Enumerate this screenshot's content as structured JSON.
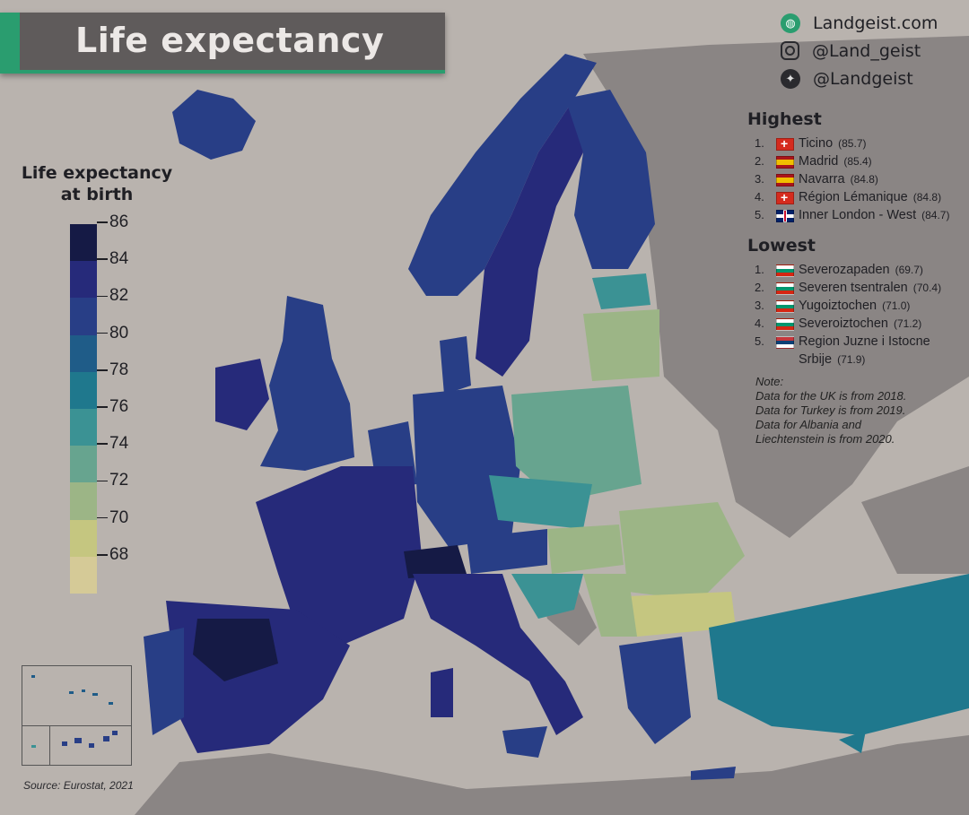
{
  "title": "Life expectancy",
  "social": [
    {
      "icon": "globe-icon",
      "label": "Landgeist.com"
    },
    {
      "icon": "instagram-icon",
      "label": "@Land_geist"
    },
    {
      "icon": "twitter-icon",
      "label": "@Landgeist"
    }
  ],
  "legend": {
    "title_line1": "Life expectancy",
    "title_line2": "at birth",
    "ticks": [
      "86",
      "84",
      "82",
      "80",
      "78",
      "76",
      "74",
      "72",
      "70",
      "68"
    ],
    "colors": [
      "#151a45",
      "#262a7a",
      "#283e86",
      "#1f5c88",
      "#1f788d",
      "#3b9294",
      "#67a48f",
      "#9cb586",
      "#c5c680",
      "#d5ca97"
    ]
  },
  "highest": {
    "title": "Highest",
    "items": [
      {
        "rank": "1.",
        "flag": "ch",
        "name": "Ticino",
        "value": "(85.7)"
      },
      {
        "rank": "2.",
        "flag": "es",
        "name": "Madrid",
        "value": "(85.4)"
      },
      {
        "rank": "3.",
        "flag": "es",
        "name": "Navarra",
        "value": "(84.8)"
      },
      {
        "rank": "4.",
        "flag": "ch",
        "name": "Région Lémanique",
        "value": "(84.8)"
      },
      {
        "rank": "5.",
        "flag": "uk",
        "name": "Inner London - West",
        "value": "(84.7)"
      }
    ]
  },
  "lowest": {
    "title": "Lowest",
    "items": [
      {
        "rank": "1.",
        "flag": "bg",
        "name": "Severozapaden",
        "value": "(69.7)"
      },
      {
        "rank": "2.",
        "flag": "bg",
        "name": "Severen tsentralen",
        "value": "(70.4)"
      },
      {
        "rank": "3.",
        "flag": "bg",
        "name": "Yugoiztochen",
        "value": "(71.0)"
      },
      {
        "rank": "4.",
        "flag": "bg",
        "name": "Severoiztochen",
        "value": "(71.2)"
      },
      {
        "rank": "5.",
        "flag": "rs",
        "name": "Region Juzne i Istocne",
        "name2": "Srbije",
        "value": "(71.9)"
      }
    ]
  },
  "note": {
    "label": "Note:",
    "lines": [
      "Data for the UK is from 2018.",
      "Data for Turkey is from 2019.",
      "Data for Albania and",
      "Liechtenstein is from 2020."
    ]
  },
  "source": "Source: Eurostat, 2021",
  "colors": {
    "sea": "#b9b3ae",
    "nodata_land": "#8a8584",
    "banner": "#5f5b5b",
    "accent": "#2a9d6f"
  }
}
